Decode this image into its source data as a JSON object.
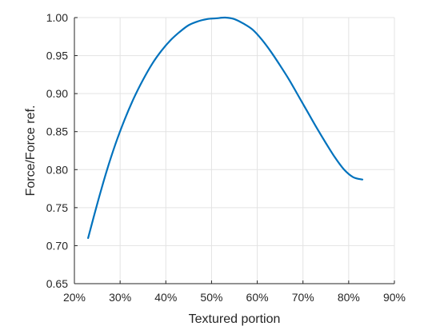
{
  "chart_data": {
    "type": "line",
    "title": "",
    "xlabel": "Textured portion",
    "ylabel": "Force/Force ref.",
    "xlim": [
      0.2,
      0.9
    ],
    "ylim": [
      0.65,
      1.0
    ],
    "x_ticks": [
      0.2,
      0.3,
      0.4,
      0.5,
      0.6,
      0.7,
      0.8,
      0.9
    ],
    "x_tick_labels": [
      "20%",
      "30%",
      "40%",
      "50%",
      "60%",
      "70%",
      "80%",
      "90%"
    ],
    "y_ticks": [
      0.65,
      0.7,
      0.75,
      0.8,
      0.85,
      0.9,
      0.95,
      1.0
    ],
    "y_tick_labels": [
      "0.65",
      "0.70",
      "0.75",
      "0.80",
      "0.85",
      "0.90",
      "0.95",
      "1.00"
    ],
    "grid": true,
    "series": [
      {
        "color": "#0072bd",
        "x": [
          0.23,
          0.25,
          0.27,
          0.29,
          0.31,
          0.33,
          0.35,
          0.37,
          0.39,
          0.41,
          0.43,
          0.45,
          0.47,
          0.49,
          0.51,
          0.53,
          0.55,
          0.57,
          0.59,
          0.61,
          0.63,
          0.65,
          0.67,
          0.69,
          0.71,
          0.73,
          0.75,
          0.77,
          0.79,
          0.81,
          0.83
        ],
        "y": [
          0.71,
          0.755,
          0.797,
          0.834,
          0.866,
          0.894,
          0.918,
          0.939,
          0.956,
          0.97,
          0.981,
          0.99,
          0.995,
          0.998,
          0.999,
          1.0,
          0.998,
          0.992,
          0.984,
          0.971,
          0.955,
          0.937,
          0.918,
          0.897,
          0.876,
          0.855,
          0.835,
          0.816,
          0.8,
          0.79,
          0.787
        ]
      }
    ]
  }
}
